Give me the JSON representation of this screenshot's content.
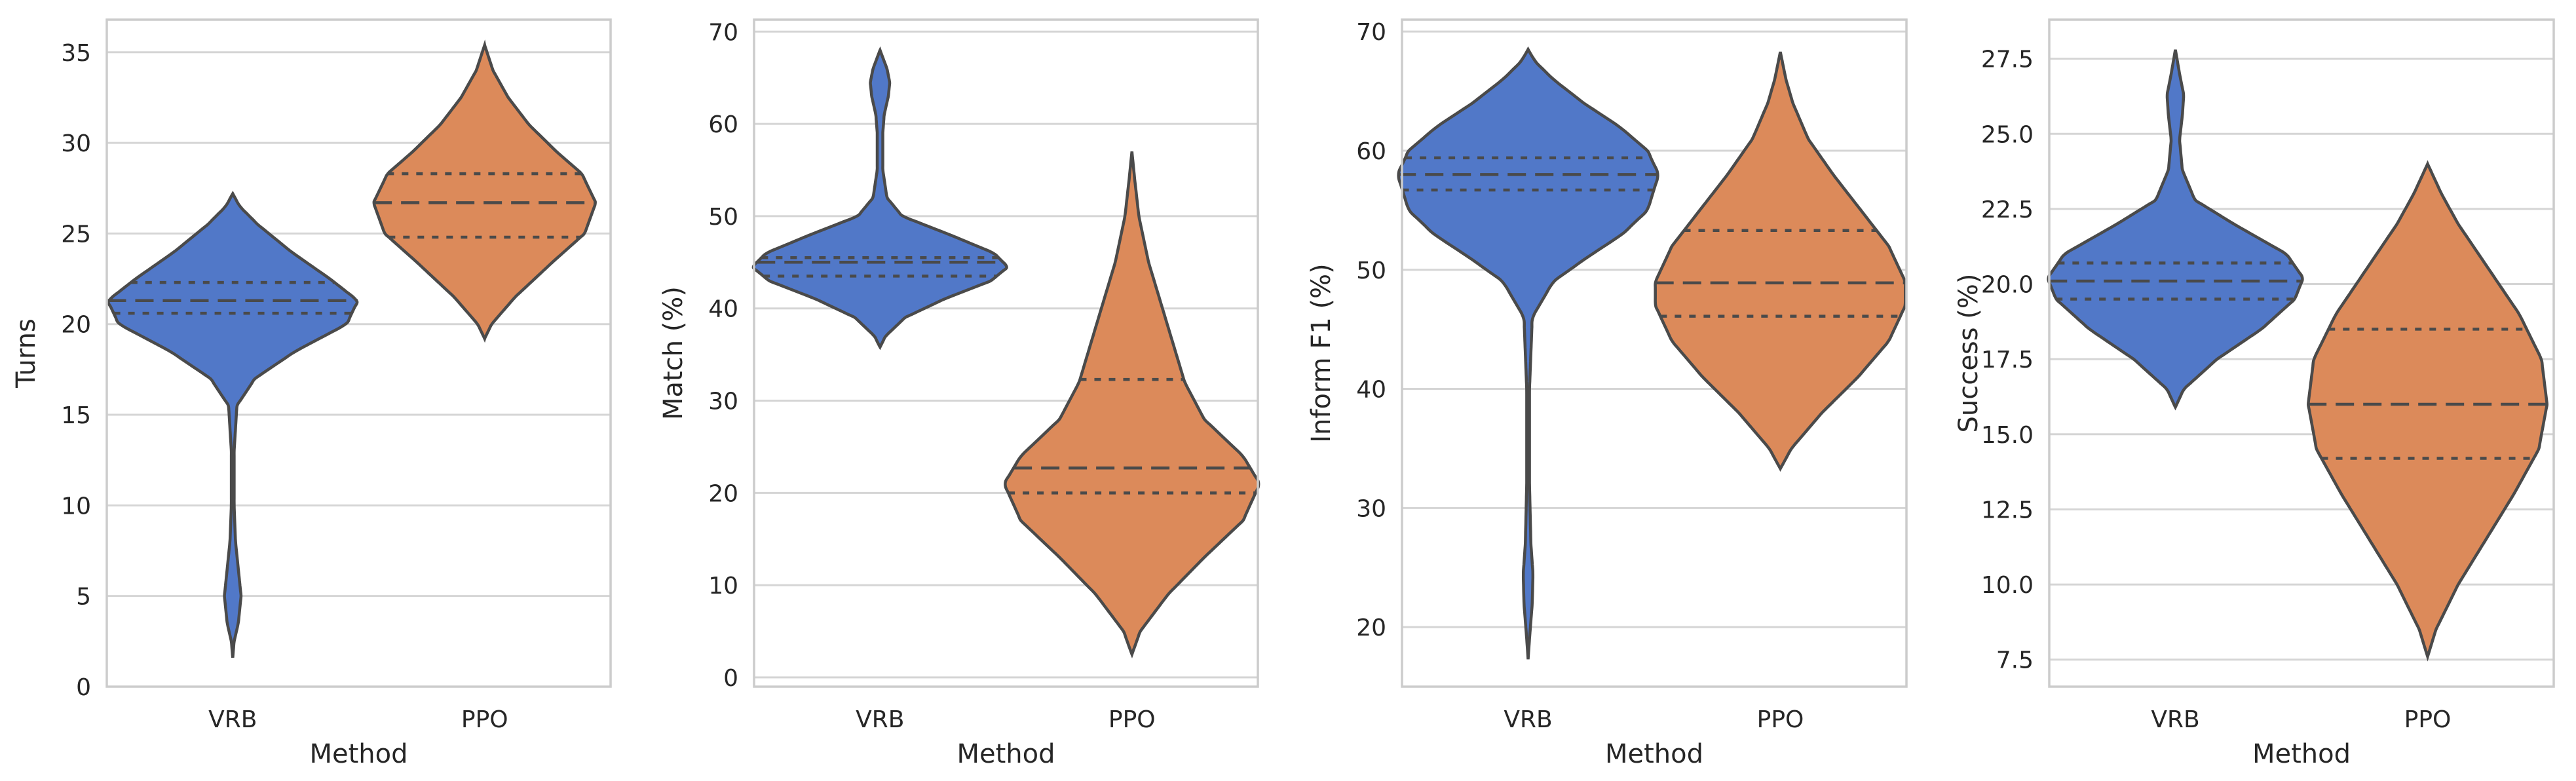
{
  "colors": {
    "VRB": "#5178c8",
    "PPO": "#dc8a5a"
  },
  "chart_data": [
    {
      "type": "violin",
      "title": "",
      "xlabel": "Method",
      "ylabel": "Turns",
      "ylim": [
        0,
        36.8
      ],
      "yticks": [
        0,
        5,
        10,
        15,
        20,
        25,
        30,
        35
      ],
      "yticklabels": [
        "0",
        "5",
        "10",
        "15",
        "20",
        "25",
        "30",
        "35"
      ],
      "categories": [
        "VRB",
        "PPO"
      ],
      "series": [
        {
          "values_range": [
            1.6,
            27.2
          ],
          "quartiles": [
            20.6,
            21.3,
            22.3
          ],
          "density": [
            [
              1.6,
              0.0
            ],
            [
              2.5,
              0.01
            ],
            [
              3.5,
              0.04
            ],
            [
              5.0,
              0.06
            ],
            [
              6.5,
              0.04
            ],
            [
              8.0,
              0.02
            ],
            [
              10.0,
              0.01
            ],
            [
              13.0,
              0.01
            ],
            [
              15.5,
              0.03
            ],
            [
              17.0,
              0.16
            ],
            [
              18.5,
              0.45
            ],
            [
              20.0,
              0.82
            ],
            [
              21.3,
              0.9
            ],
            [
              22.5,
              0.7
            ],
            [
              24.0,
              0.42
            ],
            [
              25.5,
              0.18
            ],
            [
              26.5,
              0.05
            ],
            [
              27.2,
              0.0
            ]
          ]
        },
        {
          "values_range": [
            19.2,
            35.4
          ],
          "quartiles": [
            24.8,
            26.7,
            28.3
          ],
          "density": [
            [
              19.2,
              0.0
            ],
            [
              20.0,
              0.05
            ],
            [
              21.5,
              0.22
            ],
            [
              23.5,
              0.5
            ],
            [
              25.0,
              0.72
            ],
            [
              26.7,
              0.8
            ],
            [
              28.3,
              0.7
            ],
            [
              29.5,
              0.52
            ],
            [
              31.0,
              0.32
            ],
            [
              32.5,
              0.17
            ],
            [
              34.0,
              0.06
            ],
            [
              35.4,
              0.0
            ]
          ]
        }
      ]
    },
    {
      "type": "violin",
      "title": "",
      "xlabel": "Method",
      "ylabel": "Match (%)",
      "ylim": [
        -1,
        71.3
      ],
      "yticks": [
        0,
        10,
        20,
        30,
        40,
        50,
        60,
        70
      ],
      "yticklabels": [
        "0",
        "10",
        "20",
        "30",
        "40",
        "50",
        "60",
        "70"
      ],
      "categories": [
        "VRB",
        "PPO"
      ],
      "series": [
        {
          "values_range": [
            35.8,
            68.0
          ],
          "quartiles": [
            43.5,
            45.0,
            45.5
          ],
          "density": [
            [
              35.8,
              0.0
            ],
            [
              37.0,
              0.04
            ],
            [
              39.0,
              0.18
            ],
            [
              41.0,
              0.46
            ],
            [
              43.0,
              0.8
            ],
            [
              44.5,
              0.92
            ],
            [
              46.0,
              0.82
            ],
            [
              48.0,
              0.5
            ],
            [
              50.0,
              0.16
            ],
            [
              52.0,
              0.05
            ],
            [
              55.0,
              0.02
            ],
            [
              59.0,
              0.02
            ],
            [
              61.0,
              0.03
            ],
            [
              63.0,
              0.06
            ],
            [
              64.5,
              0.07
            ],
            [
              66.0,
              0.05
            ],
            [
              68.0,
              0.0
            ]
          ]
        },
        {
          "values_range": [
            2.5,
            57.0
          ],
          "quartiles": [
            20.0,
            22.7,
            32.3
          ],
          "density": [
            [
              2.5,
              0.0
            ],
            [
              5.0,
              0.06
            ],
            [
              9.0,
              0.26
            ],
            [
              13.0,
              0.52
            ],
            [
              17.0,
              0.8
            ],
            [
              21.0,
              0.92
            ],
            [
              24.0,
              0.8
            ],
            [
              28.0,
              0.52
            ],
            [
              32.0,
              0.38
            ],
            [
              36.0,
              0.3
            ],
            [
              40.0,
              0.22
            ],
            [
              45.0,
              0.12
            ],
            [
              50.0,
              0.05
            ],
            [
              54.0,
              0.02
            ],
            [
              57.0,
              0.0
            ]
          ]
        }
      ]
    },
    {
      "type": "violin",
      "title": "",
      "xlabel": "Method",
      "ylabel": "Inform F1 (%)",
      "ylim": [
        15,
        71
      ],
      "yticks": [
        20,
        30,
        40,
        50,
        60,
        70
      ],
      "yticklabels": [
        "20",
        "30",
        "40",
        "50",
        "60",
        "70"
      ],
      "categories": [
        "VRB",
        "PPO"
      ],
      "series": [
        {
          "values_range": [
            17.3,
            68.5
          ],
          "quartiles": [
            56.7,
            58.0,
            59.4
          ],
          "density": [
            [
              17.3,
              0.0
            ],
            [
              19.0,
              0.01
            ],
            [
              22.0,
              0.03
            ],
            [
              24.5,
              0.035
            ],
            [
              27.0,
              0.02
            ],
            [
              32.0,
              0.01
            ],
            [
              40.0,
              0.01
            ],
            [
              46.0,
              0.03
            ],
            [
              49.0,
              0.18
            ],
            [
              51.0,
              0.42
            ],
            [
              53.0,
              0.68
            ],
            [
              55.0,
              0.86
            ],
            [
              58.0,
              0.94
            ],
            [
              60.0,
              0.86
            ],
            [
              62.0,
              0.66
            ],
            [
              64.0,
              0.4
            ],
            [
              66.0,
              0.18
            ],
            [
              67.5,
              0.05
            ],
            [
              68.5,
              0.0
            ]
          ]
        },
        {
          "values_range": [
            33.3,
            68.3
          ],
          "quartiles": [
            46.1,
            48.9,
            53.3
          ],
          "density": [
            [
              33.3,
              0.0
            ],
            [
              35.0,
              0.08
            ],
            [
              38.0,
              0.3
            ],
            [
              41.0,
              0.56
            ],
            [
              44.0,
              0.78
            ],
            [
              47.0,
              0.9
            ],
            [
              49.0,
              0.9
            ],
            [
              52.0,
              0.78
            ],
            [
              55.0,
              0.58
            ],
            [
              58.0,
              0.38
            ],
            [
              61.0,
              0.2
            ],
            [
              64.0,
              0.09
            ],
            [
              66.0,
              0.04
            ],
            [
              68.3,
              0.0
            ]
          ]
        }
      ]
    },
    {
      "type": "violin",
      "title": "",
      "xlabel": "Method",
      "ylabel": "Success (%)",
      "ylim": [
        6.6,
        28.8
      ],
      "yticks": [
        7.5,
        10,
        12.5,
        15,
        17.5,
        20,
        22.5,
        25,
        27.5
      ],
      "yticklabels": [
        "7.5",
        "10.0",
        "12.5",
        "15.0",
        "17.5",
        "20.0",
        "22.5",
        "25.0",
        "27.5"
      ],
      "categories": [
        "VRB",
        "PPO"
      ],
      "series": [
        {
          "values_range": [
            15.9,
            27.8
          ],
          "quartiles": [
            19.5,
            20.1,
            20.7
          ],
          "density": [
            [
              15.9,
              0.0
            ],
            [
              16.5,
              0.06
            ],
            [
              17.5,
              0.3
            ],
            [
              18.5,
              0.62
            ],
            [
              19.5,
              0.86
            ],
            [
              20.2,
              0.92
            ],
            [
              21.0,
              0.8
            ],
            [
              22.0,
              0.42
            ],
            [
              22.8,
              0.14
            ],
            [
              23.8,
              0.05
            ],
            [
              24.8,
              0.03
            ],
            [
              25.6,
              0.05
            ],
            [
              26.3,
              0.06
            ],
            [
              27.0,
              0.03
            ],
            [
              27.8,
              0.0
            ]
          ]
        },
        {
          "values_range": [
            7.6,
            24.0
          ],
          "quartiles": [
            14.2,
            16.0,
            18.5
          ],
          "density": [
            [
              7.6,
              0.0
            ],
            [
              8.5,
              0.06
            ],
            [
              10.0,
              0.22
            ],
            [
              11.5,
              0.42
            ],
            [
              13.0,
              0.62
            ],
            [
              14.5,
              0.8
            ],
            [
              16.0,
              0.86
            ],
            [
              17.5,
              0.82
            ],
            [
              19.0,
              0.66
            ],
            [
              20.5,
              0.44
            ],
            [
              22.0,
              0.22
            ],
            [
              23.0,
              0.1
            ],
            [
              24.0,
              0.0
            ]
          ]
        }
      ]
    }
  ]
}
